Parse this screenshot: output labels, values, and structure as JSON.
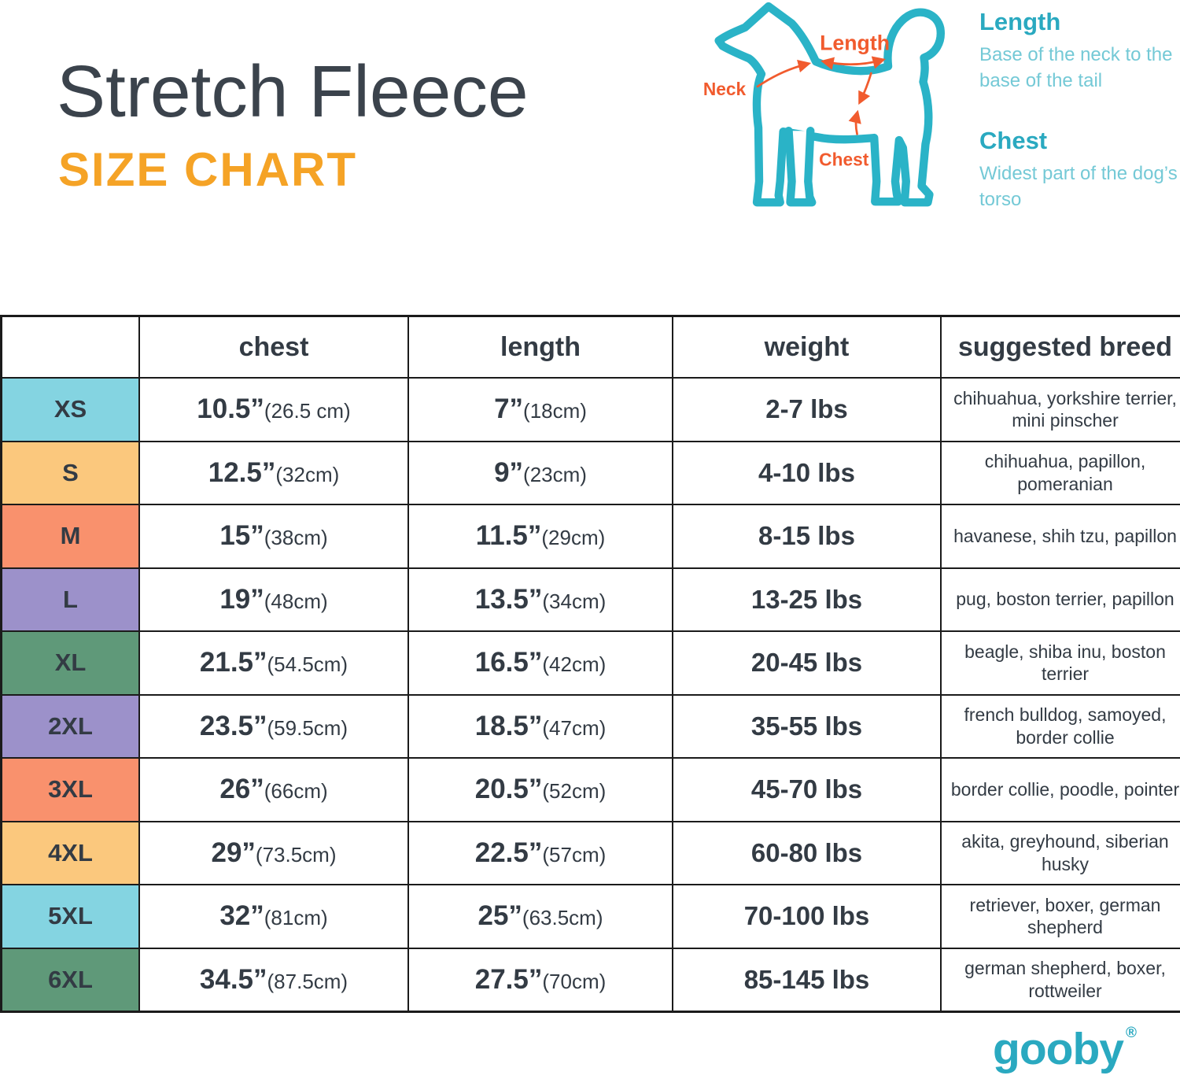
{
  "header": {
    "title": "Stretch Fleece",
    "subtitle": "SIZE CHART"
  },
  "diagram": {
    "length_label": "Length",
    "neck_label": "Neck",
    "chest_label": "Chest"
  },
  "legend": {
    "length_title": "Length",
    "length_desc": "Base of the neck to the base of the tail",
    "chest_title": "Chest",
    "chest_desc": "Widest part of the dog’s torso"
  },
  "table": {
    "headers": {
      "size": "",
      "chest": "chest",
      "length": "length",
      "weight": "weight",
      "breed": "suggested breed"
    },
    "palette": {
      "cyan": "#84d4e1",
      "orange": "#fbc87d",
      "salmon": "#f9916d",
      "lavender": "#9c91ca",
      "green": "#5f9979"
    },
    "rows": [
      {
        "size": "XS",
        "color": "cyan",
        "chest_in": "10.5”",
        "chest_cm": "(26.5 cm)",
        "length_in": "7”",
        "length_cm": "(18cm)",
        "weight": "2-7 lbs",
        "breed": "chihuahua, yorkshire terrier, mini pinscher"
      },
      {
        "size": "S",
        "color": "orange",
        "chest_in": "12.5”",
        "chest_cm": "(32cm)",
        "length_in": "9”",
        "length_cm": "(23cm)",
        "weight": "4-10 lbs",
        "breed": "chihuahua, papillon, pomeranian"
      },
      {
        "size": "M",
        "color": "salmon",
        "chest_in": "15”",
        "chest_cm": "(38cm)",
        "length_in": "11.5”",
        "length_cm": "(29cm)",
        "weight": "8-15 lbs",
        "breed": "havanese, shih tzu, papillon"
      },
      {
        "size": "L",
        "color": "lavender",
        "chest_in": "19”",
        "chest_cm": "(48cm)",
        "length_in": "13.5”",
        "length_cm": "(34cm)",
        "weight": "13-25 lbs",
        "breed": "pug, boston terrier, papillon"
      },
      {
        "size": "XL",
        "color": "green",
        "chest_in": "21.5”",
        "chest_cm": "(54.5cm)",
        "length_in": "16.5”",
        "length_cm": "(42cm)",
        "weight": "20-45 lbs",
        "breed": "beagle, shiba inu, boston terrier"
      },
      {
        "size": "2XL",
        "color": "lavender",
        "chest_in": "23.5”",
        "chest_cm": "(59.5cm)",
        "length_in": "18.5”",
        "length_cm": "(47cm)",
        "weight": "35-55 lbs",
        "breed": "french bulldog, samoyed, border collie"
      },
      {
        "size": "3XL",
        "color": "salmon",
        "chest_in": "26”",
        "chest_cm": "(66cm)",
        "length_in": "20.5”",
        "length_cm": "(52cm)",
        "weight": "45-70 lbs",
        "breed": "border collie, poodle, pointer"
      },
      {
        "size": "4XL",
        "color": "orange",
        "chest_in": "29”",
        "chest_cm": "(73.5cm)",
        "length_in": "22.5”",
        "length_cm": "(57cm)",
        "weight": "60-80 lbs",
        "breed": "akita, greyhound, siberian husky"
      },
      {
        "size": "5XL",
        "color": "cyan",
        "chest_in": "32”",
        "chest_cm": "(81cm)",
        "length_in": "25”",
        "length_cm": "(63.5cm)",
        "weight": "70-100 lbs",
        "breed": "retriever, boxer, german shepherd"
      },
      {
        "size": "6XL",
        "color": "green",
        "chest_in": "34.5”",
        "chest_cm": "(87.5cm)",
        "length_in": "27.5”",
        "length_cm": "(70cm)",
        "weight": "85-145 lbs",
        "breed": "german shepherd, boxer, rottweiler"
      }
    ]
  },
  "footer": {
    "brand": "gooby",
    "registered_mark": "®"
  },
  "colors": {
    "teal": "#2ab3c7",
    "teal_light": "#74c9d6",
    "arrow_orange": "#f15b2e",
    "title_dark": "#3b434c",
    "subtitle_orange": "#f5a326",
    "table_text": "#333b44",
    "grid_line": "#1b1b1b"
  }
}
